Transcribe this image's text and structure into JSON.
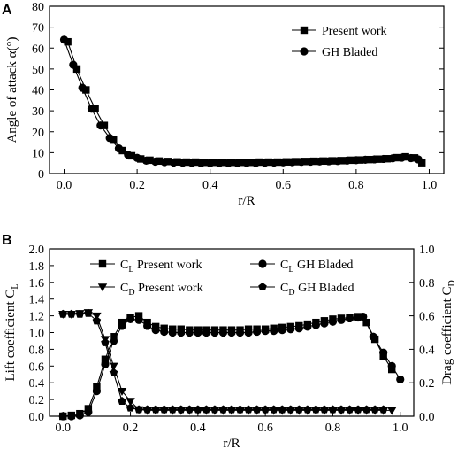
{
  "chart_data": [
    {
      "panel": "A",
      "type": "line",
      "xlabel": "r/R",
      "ylabel": "Angle of attack  α(°)",
      "xlim": [
        -0.04,
        1.04
      ],
      "ylim": [
        0,
        80
      ],
      "xticks": [
        0.0,
        0.2,
        0.4,
        0.6,
        0.8,
        1.0
      ],
      "yticks": [
        0,
        10,
        20,
        30,
        40,
        50,
        60,
        70,
        80
      ],
      "grid": false,
      "legend_position": "top-right",
      "series": [
        {
          "name": "Present work",
          "marker": "square",
          "x": [
            0.01,
            0.035,
            0.06,
            0.085,
            0.11,
            0.135,
            0.16,
            0.185,
            0.21,
            0.235,
            0.26,
            0.285,
            0.31,
            0.335,
            0.36,
            0.385,
            0.41,
            0.435,
            0.46,
            0.485,
            0.51,
            0.535,
            0.56,
            0.585,
            0.61,
            0.635,
            0.66,
            0.685,
            0.71,
            0.735,
            0.76,
            0.785,
            0.81,
            0.835,
            0.86,
            0.885,
            0.91,
            0.935,
            0.96,
            0.98
          ],
          "y": [
            63,
            50,
            40,
            31,
            23,
            16,
            11,
            8.5,
            7,
            6.4,
            6,
            5.8,
            5.6,
            5.5,
            5.5,
            5.4,
            5.4,
            5.4,
            5.4,
            5.4,
            5.4,
            5.5,
            5.5,
            5.5,
            5.6,
            5.7,
            5.8,
            5.9,
            6,
            6.1,
            6.2,
            6.4,
            6.5,
            6.7,
            6.9,
            7.1,
            7.6,
            8,
            7.5,
            5.2
          ]
        },
        {
          "name": "GH Bladed",
          "marker": "circle",
          "x": [
            0.0,
            0.025,
            0.05,
            0.075,
            0.1,
            0.125,
            0.15,
            0.175,
            0.2,
            0.225,
            0.25,
            0.275,
            0.3,
            0.325,
            0.35,
            0.375,
            0.4,
            0.425,
            0.45,
            0.475,
            0.5,
            0.525,
            0.55,
            0.575,
            0.6,
            0.625,
            0.65,
            0.675,
            0.7,
            0.725,
            0.75,
            0.775,
            0.8,
            0.825,
            0.85,
            0.875,
            0.9,
            0.925,
            0.95,
            0.97
          ],
          "y": [
            64,
            52,
            41,
            31,
            23,
            17,
            12,
            9,
            7.5,
            6.2,
            5.7,
            5.5,
            5.3,
            5.2,
            5.1,
            5,
            5,
            5,
            5,
            5,
            5.1,
            5.1,
            5.2,
            5.3,
            5.4,
            5.5,
            5.6,
            5.7,
            5.8,
            5.9,
            6,
            6.2,
            6.4,
            6.6,
            6.8,
            7,
            7.3,
            7.6,
            7.4,
            6.8
          ]
        }
      ]
    },
    {
      "panel": "B",
      "type": "line",
      "xlabel": "r/R",
      "ylabel": "Lift coefficient  C_L",
      "y2label": "Drag coefficient  C_D",
      "xlim": [
        -0.04,
        1.04
      ],
      "ylim": [
        0,
        2.0
      ],
      "y2lim": [
        0,
        1.0
      ],
      "xticks": [
        0.0,
        0.2,
        0.4,
        0.6,
        0.8,
        1.0
      ],
      "yticks": [
        0.0,
        0.2,
        0.4,
        0.6,
        0.8,
        1.0,
        1.2,
        1.4,
        1.6,
        1.8,
        2.0
      ],
      "y2ticks": [
        0.0,
        0.2,
        0.4,
        0.6,
        0.8,
        1.0
      ],
      "grid": false,
      "legend_position": "top",
      "series": [
        {
          "name": "Present work",
          "coef": "C",
          "sub": "L",
          "axis": "left",
          "marker": "square",
          "x": [
            0.0,
            0.025,
            0.05,
            0.075,
            0.1,
            0.125,
            0.15,
            0.175,
            0.2,
            0.225,
            0.25,
            0.275,
            0.3,
            0.325,
            0.35,
            0.375,
            0.4,
            0.425,
            0.45,
            0.475,
            0.5,
            0.525,
            0.55,
            0.575,
            0.6,
            0.625,
            0.65,
            0.675,
            0.7,
            0.725,
            0.75,
            0.775,
            0.8,
            0.825,
            0.85,
            0.875,
            0.9,
            0.925,
            0.95,
            0.975
          ],
          "y": [
            0.0,
            0.01,
            0.03,
            0.09,
            0.35,
            0.68,
            0.95,
            1.12,
            1.18,
            1.2,
            1.12,
            1.07,
            1.05,
            1.04,
            1.04,
            1.03,
            1.03,
            1.03,
            1.03,
            1.03,
            1.03,
            1.03,
            1.04,
            1.04,
            1.04,
            1.05,
            1.06,
            1.07,
            1.08,
            1.1,
            1.12,
            1.14,
            1.16,
            1.17,
            1.18,
            1.19,
            1.12,
            0.92,
            0.72,
            0.56
          ]
        },
        {
          "name": "GH Bladed",
          "coef": "C",
          "sub": "L",
          "axis": "left",
          "marker": "circle",
          "x": [
            0.0,
            0.025,
            0.05,
            0.075,
            0.1,
            0.125,
            0.15,
            0.175,
            0.2,
            0.225,
            0.25,
            0.275,
            0.3,
            0.325,
            0.35,
            0.375,
            0.4,
            0.425,
            0.45,
            0.475,
            0.5,
            0.525,
            0.55,
            0.575,
            0.6,
            0.625,
            0.65,
            0.675,
            0.7,
            0.725,
            0.75,
            0.775,
            0.8,
            0.825,
            0.85,
            0.875,
            0.89,
            0.92,
            0.95,
            0.975,
            1.0
          ],
          "y": [
            0.0,
            0.0,
            0.01,
            0.05,
            0.3,
            0.62,
            0.9,
            1.08,
            1.16,
            1.15,
            1.08,
            1.03,
            1.01,
            1.0,
            1.0,
            1.0,
            1.0,
            1.0,
            1.0,
            1.0,
            1.0,
            1.0,
            1.0,
            1.01,
            1.02,
            1.02,
            1.03,
            1.04,
            1.05,
            1.07,
            1.09,
            1.11,
            1.13,
            1.15,
            1.17,
            1.18,
            1.19,
            0.95,
            0.76,
            0.6,
            0.44
          ]
        },
        {
          "name": "Present work",
          "coef": "C",
          "sub": "D",
          "axis": "right",
          "marker": "triangle-down",
          "x": [
            0.0,
            0.025,
            0.05,
            0.075,
            0.1,
            0.125,
            0.15,
            0.175,
            0.2,
            0.225,
            0.25,
            0.275,
            0.3,
            0.325,
            0.35,
            0.375,
            0.4,
            0.425,
            0.45,
            0.475,
            0.5,
            0.525,
            0.55,
            0.575,
            0.6,
            0.625,
            0.65,
            0.675,
            0.7,
            0.725,
            0.75,
            0.775,
            0.8,
            0.825,
            0.85,
            0.875,
            0.9,
            0.925,
            0.95,
            0.975
          ],
          "y": [
            0.61,
            0.61,
            0.615,
            0.62,
            0.6,
            0.46,
            0.3,
            0.15,
            0.09,
            0.04,
            0.035,
            0.035,
            0.035,
            0.035,
            0.035,
            0.035,
            0.035,
            0.035,
            0.035,
            0.035,
            0.035,
            0.035,
            0.035,
            0.035,
            0.035,
            0.035,
            0.035,
            0.035,
            0.035,
            0.035,
            0.035,
            0.035,
            0.035,
            0.035,
            0.035,
            0.035,
            0.035,
            0.035,
            0.035,
            0.035
          ]
        },
        {
          "name": "GH Bladed",
          "coef": "C",
          "sub": "D",
          "axis": "right",
          "marker": "pentagon",
          "x": [
            0.0,
            0.025,
            0.05,
            0.075,
            0.1,
            0.125,
            0.15,
            0.175,
            0.2,
            0.225,
            0.25,
            0.275,
            0.3,
            0.325,
            0.35,
            0.375,
            0.4,
            0.425,
            0.45,
            0.475,
            0.5,
            0.525,
            0.55,
            0.575,
            0.6,
            0.625,
            0.65,
            0.675,
            0.7,
            0.725,
            0.75,
            0.775,
            0.8,
            0.825,
            0.85,
            0.875,
            0.9,
            0.925,
            0.95
          ],
          "y": [
            0.61,
            0.61,
            0.61,
            0.615,
            0.57,
            0.44,
            0.26,
            0.09,
            0.05,
            0.04,
            0.04,
            0.04,
            0.04,
            0.04,
            0.04,
            0.04,
            0.04,
            0.04,
            0.04,
            0.04,
            0.04,
            0.04,
            0.04,
            0.04,
            0.04,
            0.04,
            0.04,
            0.04,
            0.04,
            0.04,
            0.04,
            0.04,
            0.04,
            0.04,
            0.04,
            0.04,
            0.04,
            0.04,
            0.04
          ]
        }
      ]
    }
  ]
}
